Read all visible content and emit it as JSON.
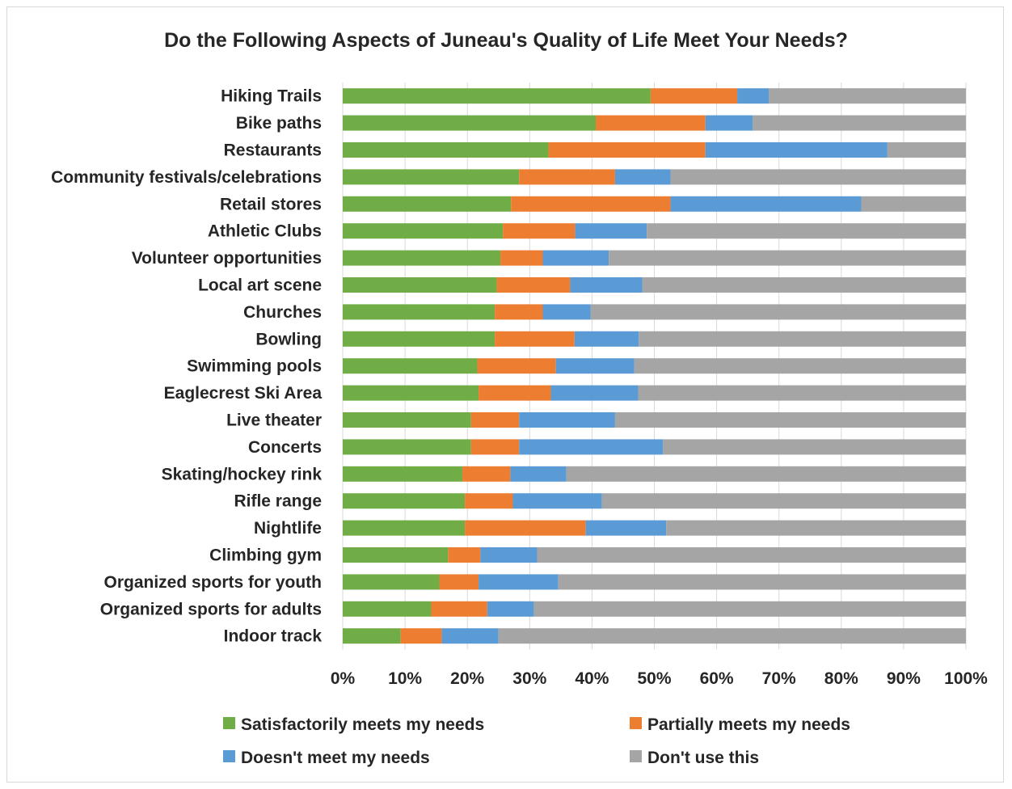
{
  "chart_data": {
    "type": "bar",
    "orientation": "horizontal",
    "stacked": "percent",
    "title": "Do the Following Aspects of Juneau's Quality of Life Meet Your Needs?",
    "xlabel": "",
    "ylabel": "",
    "xlim": [
      0,
      100
    ],
    "x_ticks": [
      "0%",
      "10%",
      "20%",
      "30%",
      "40%",
      "50%",
      "60%",
      "70%",
      "80%",
      "90%",
      "100%"
    ],
    "grid": true,
    "legend_position": "bottom",
    "categories": [
      "Hiking Trails",
      "Bike paths",
      "Restaurants",
      "Community festivals/celebrations",
      "Retail stores",
      "Athletic Clubs",
      "Volunteer opportunities",
      "Local art scene",
      "Churches",
      "Bowling",
      "Swimming pools",
      "Eaglecrest Ski Area",
      "Live theater",
      "Concerts",
      "Skating/hockey rink",
      "Rifle range",
      "Nightlife",
      "Climbing gym",
      "Organized sports for youth",
      "Organized sports for adults",
      "Indoor track"
    ],
    "series": [
      {
        "name": "Satisfactorily meets my needs",
        "color": "#70AD47",
        "values": [
          49.4,
          40.6,
          33.0,
          28.3,
          27.0,
          25.7,
          25.3,
          24.7,
          24.4,
          24.4,
          21.6,
          21.8,
          20.6,
          20.6,
          19.2,
          19.6,
          19.6,
          16.9,
          15.5,
          14.2,
          9.3
        ]
      },
      {
        "name": "Partially meets my needs",
        "color": "#ED7D31",
        "values": [
          13.9,
          17.6,
          25.2,
          15.4,
          25.6,
          11.6,
          6.8,
          11.8,
          7.7,
          12.8,
          12.6,
          11.6,
          7.7,
          7.7,
          7.7,
          7.7,
          19.4,
          5.2,
          6.3,
          9.0,
          6.6
        ]
      },
      {
        "name": "Doesn't meet my needs",
        "color": "#5B9BD5",
        "values": [
          5.1,
          7.6,
          29.2,
          8.9,
          30.6,
          11.5,
          10.6,
          11.6,
          7.7,
          10.3,
          12.6,
          14.0,
          15.4,
          23.1,
          9.0,
          14.3,
          12.9,
          9.1,
          12.8,
          7.5,
          9.1
        ]
      },
      {
        "name": "Don't use this",
        "color": "#A5A5A5",
        "values": [
          31.6,
          34.2,
          12.6,
          47.4,
          16.8,
          51.2,
          57.3,
          51.9,
          60.2,
          52.5,
          53.2,
          52.6,
          56.3,
          48.6,
          64.1,
          58.4,
          48.1,
          68.8,
          65.4,
          69.3,
          75.0
        ]
      }
    ]
  }
}
